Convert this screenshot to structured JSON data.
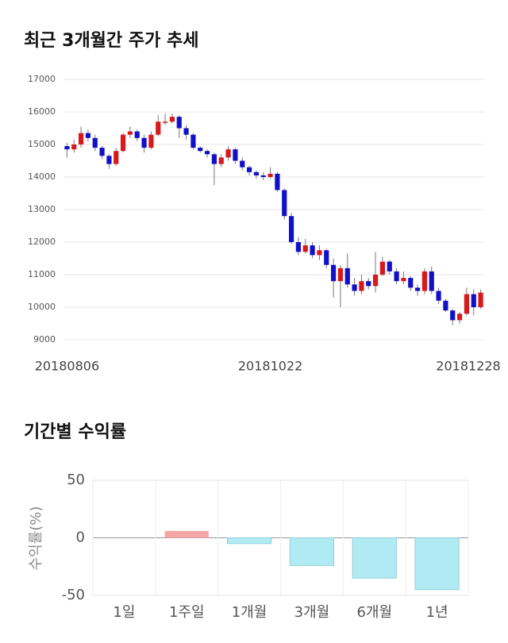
{
  "chart_data": [
    {
      "type": "candlestick",
      "title": "최근 3개월간 주가 추세",
      "categories": [
        "20180806",
        null,
        null,
        null,
        null,
        null,
        null,
        null,
        null,
        null,
        null,
        null,
        null,
        null,
        null,
        null,
        null,
        null,
        null,
        null,
        null,
        null,
        null,
        null,
        null,
        null,
        null,
        null,
        null,
        "20181022",
        null,
        null,
        null,
        null,
        null,
        null,
        null,
        null,
        null,
        null,
        null,
        null,
        null,
        null,
        null,
        null,
        null,
        null,
        null,
        null,
        null,
        null,
        null,
        null,
        null,
        null,
        null,
        null,
        null,
        "20181228"
      ],
      "open": [
        14950,
        14850,
        15000,
        15350,
        15200,
        14900,
        14650,
        14400,
        14800,
        15300,
        15400,
        15200,
        14900,
        15300,
        15700,
        15700,
        15850,
        15500,
        15300,
        14900,
        14800,
        14700,
        14400,
        14600,
        14850,
        14500,
        14300,
        14150,
        14050,
        14000,
        14100,
        13600,
        12800,
        12000,
        11700,
        11900,
        11600,
        11750,
        11300,
        10800,
        11200,
        10700,
        10500,
        10800,
        10650,
        11000,
        11400,
        11100,
        10800,
        10900,
        10600,
        10500,
        11100,
        10500,
        10200,
        9900,
        9600,
        9800,
        10400,
        10000
      ],
      "high": [
        15050,
        15150,
        15550,
        15450,
        15300,
        14950,
        14700,
        14900,
        15350,
        15550,
        15450,
        15300,
        15400,
        15900,
        15950,
        15950,
        15900,
        15600,
        15350,
        14950,
        14850,
        14750,
        14700,
        14950,
        14900,
        14600,
        14350,
        14200,
        14150,
        14300,
        14150,
        13650,
        12900,
        12150,
        12100,
        12000,
        11900,
        11800,
        11500,
        11300,
        11650,
        10900,
        11000,
        10900,
        11700,
        11550,
        11450,
        11200,
        11100,
        10950,
        10700,
        11200,
        11250,
        10600,
        10250,
        9950,
        9850,
        10600,
        10550,
        10550
      ],
      "low": [
        14600,
        14750,
        14900,
        15100,
        14800,
        14550,
        14250,
        14350,
        14750,
        15200,
        15100,
        14750,
        14850,
        15250,
        15600,
        15650,
        15200,
        15150,
        14850,
        14750,
        14600,
        13750,
        14300,
        14500,
        14400,
        14200,
        14050,
        13950,
        13900,
        13950,
        13550,
        12700,
        11950,
        11600,
        11650,
        11500,
        11450,
        11200,
        10300,
        10000,
        10600,
        10350,
        10400,
        10550,
        10450,
        10950,
        11000,
        10700,
        10700,
        10500,
        10350,
        10400,
        10400,
        10100,
        9850,
        9450,
        9500,
        9750,
        9750,
        9950
      ],
      "close": [
        14850,
        15000,
        15350,
        15200,
        14900,
        14650,
        14400,
        14800,
        15300,
        15400,
        15200,
        14900,
        15300,
        15700,
        15700,
        15850,
        15500,
        15300,
        14900,
        14800,
        14700,
        14400,
        14600,
        14850,
        14500,
        14300,
        14150,
        14050,
        14000,
        14100,
        13600,
        12800,
        12000,
        11700,
        11900,
        11600,
        11750,
        11300,
        10800,
        11200,
        10700,
        10500,
        10800,
        10650,
        11000,
        11400,
        11100,
        10800,
        10900,
        10600,
        10500,
        11100,
        10500,
        10200,
        9900,
        9600,
        9800,
        10400,
        10000,
        10450
      ],
      "up_color": "#d7191c",
      "down_color": "#1010c8",
      "ylim": [
        9000,
        17000
      ],
      "yticks": [
        9000,
        10000,
        11000,
        12000,
        13000,
        14000,
        15000,
        16000,
        17000
      ],
      "grid": true
    },
    {
      "type": "bar",
      "title": "기간별 수익률",
      "y_label": "수익률(%)",
      "categories": [
        "1일",
        "1주일",
        "1개월",
        "3개월",
        "6개월",
        "1년"
      ],
      "values": [
        0,
        6,
        -5,
        -24,
        -35,
        -45
      ],
      "positive_color": "#f6a5a5",
      "negative_color": "#b0ebf3",
      "negative_stroke": "#8fcfd9",
      "ylim": [
        -50,
        50
      ],
      "yticks": [
        -50,
        0,
        50
      ],
      "grid": true
    }
  ]
}
